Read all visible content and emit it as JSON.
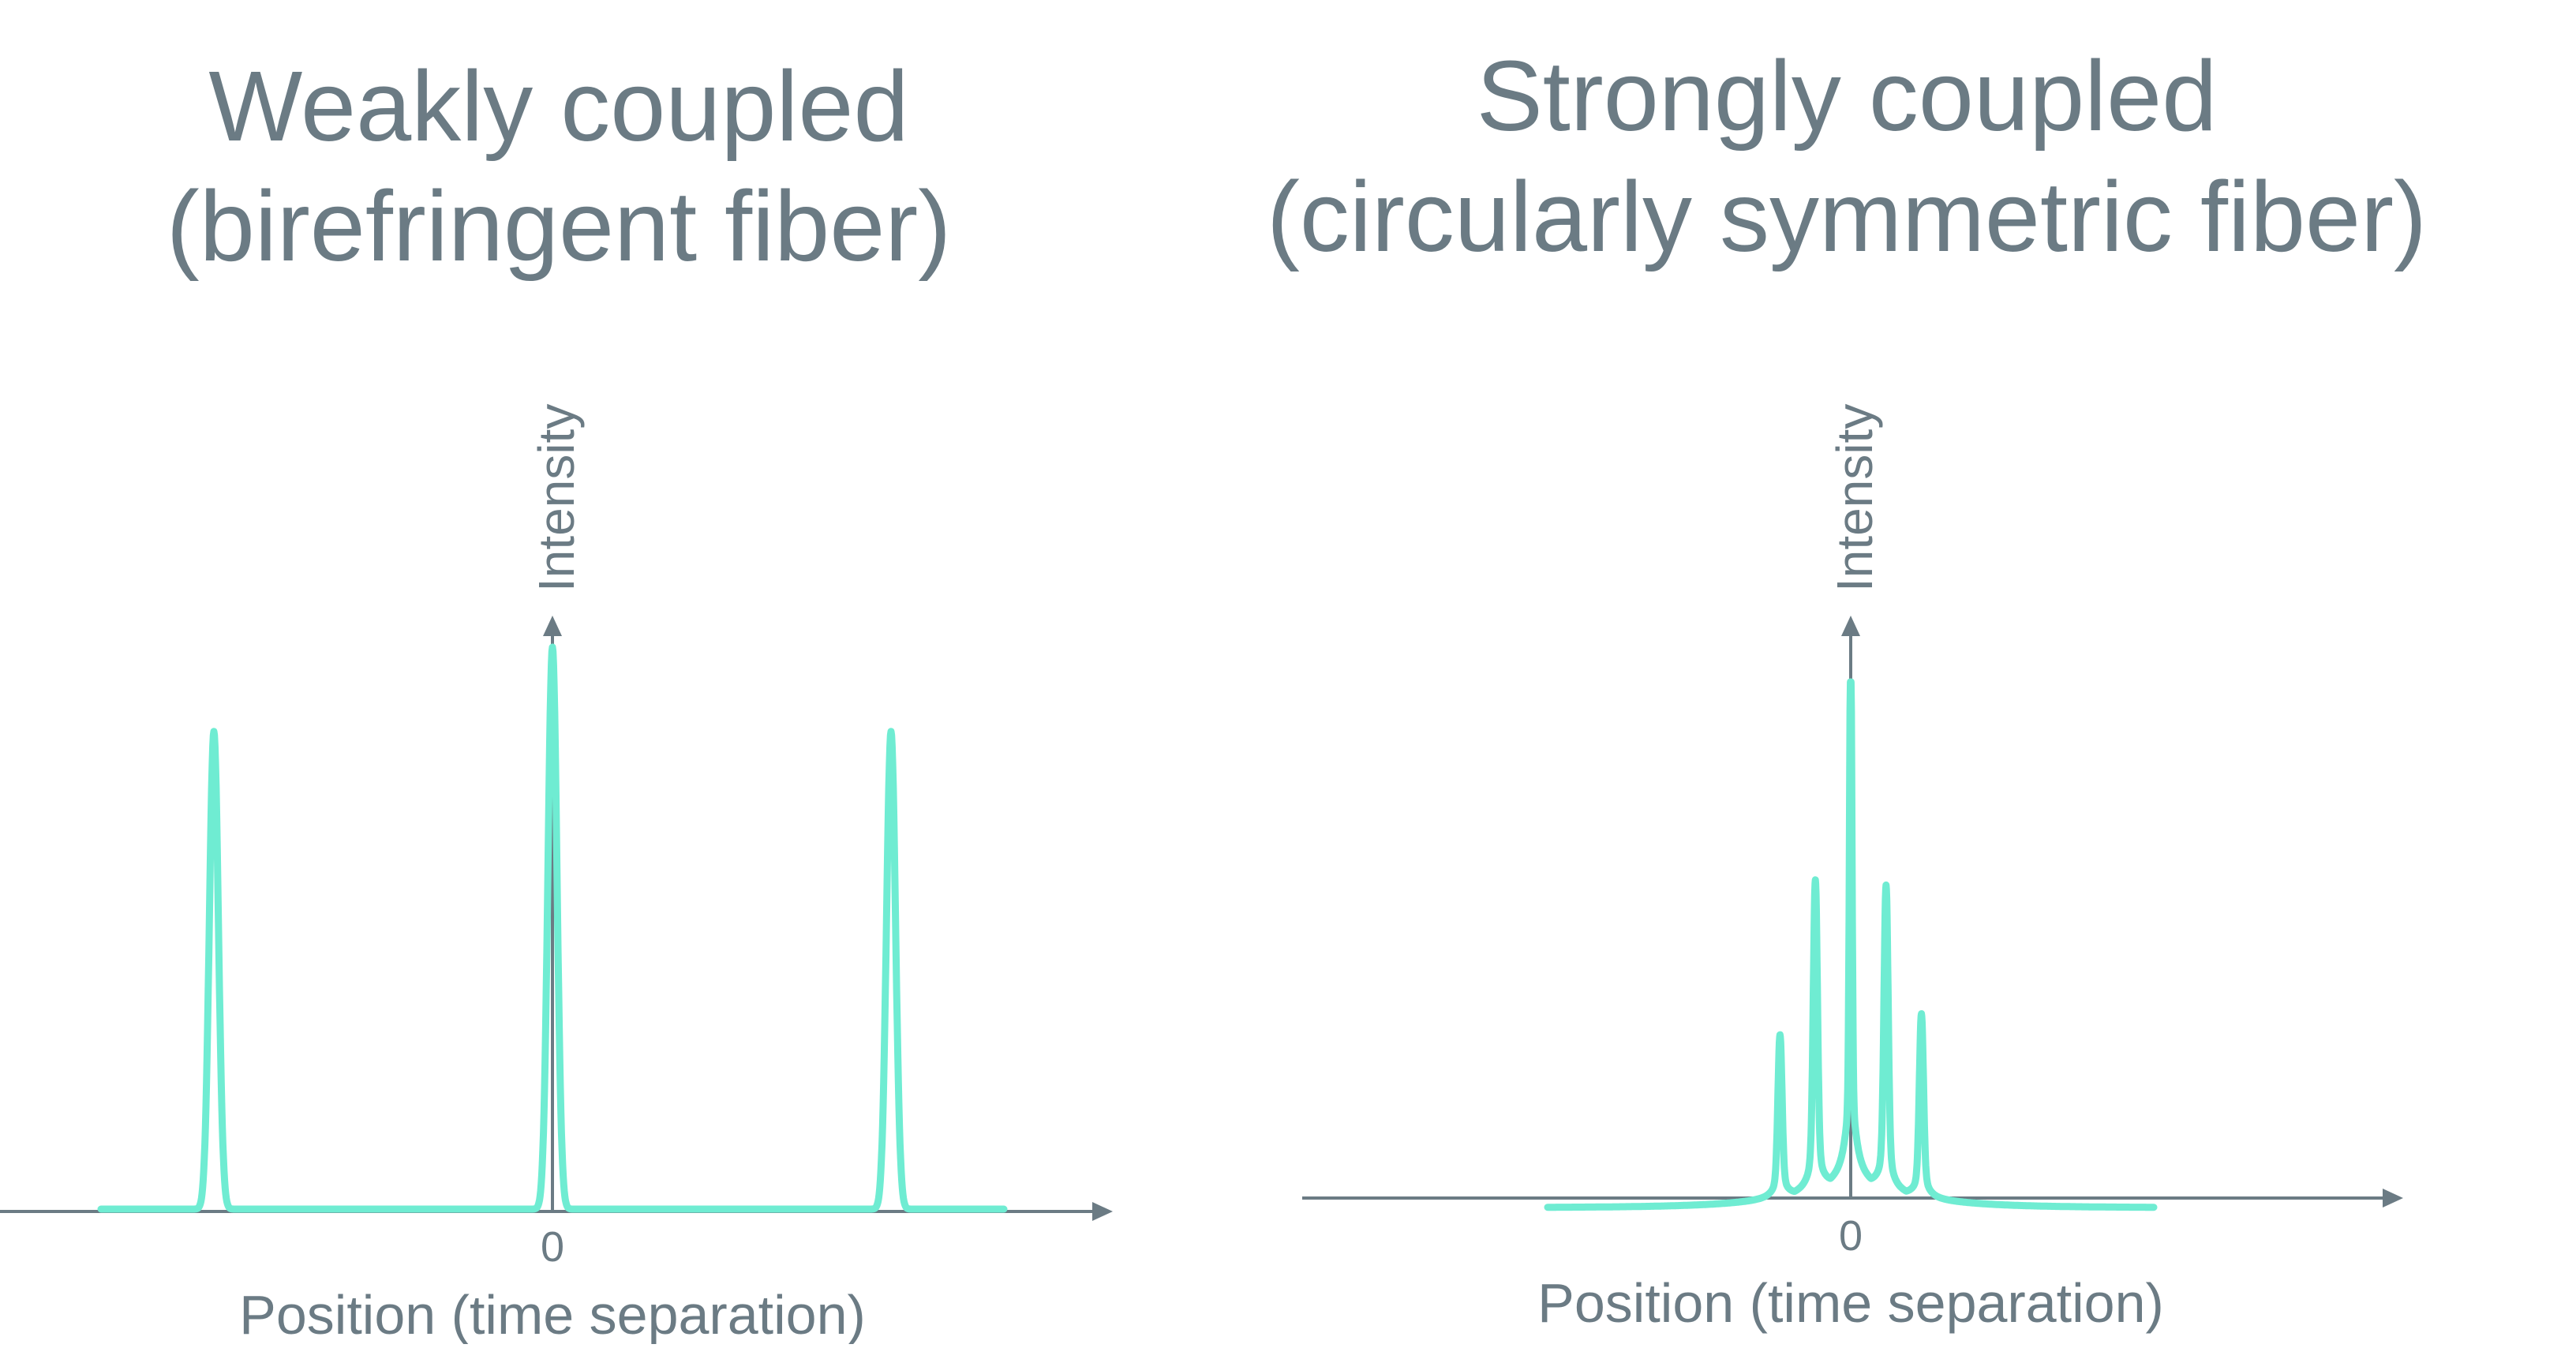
{
  "colors": {
    "text": "#6b7b84",
    "axis": "#6b7b84",
    "curve": "#6fecd2",
    "background": "#ffffff"
  },
  "chart_data": [
    {
      "type": "line",
      "title": "Weakly coupled",
      "subtitle": "(birefringent fiber)",
      "xlabel": "Position (time separation)",
      "ylabel": "Intensity",
      "x_tick_labels": [
        "0"
      ],
      "xlim": [
        -1.0,
        1.0
      ],
      "ylim": [
        0,
        1.0
      ],
      "grid": false,
      "series": [
        {
          "peaks": [
            {
              "x": -0.6,
              "height": 0.85
            },
            {
              "x": 0.0,
              "height": 1.0
            },
            {
              "x": 0.6,
              "height": 0.85
            }
          ]
        }
      ]
    },
    {
      "type": "line",
      "title": "Strongly coupled",
      "subtitle": "(circularly symmetric fiber)",
      "xlabel": "Position (time separation)",
      "ylabel": "Intensity",
      "x_tick_labels": [
        "0"
      ],
      "xlim": [
        -1.0,
        1.0
      ],
      "ylim": [
        0,
        1.0
      ],
      "grid": false,
      "series": [
        {
          "peaks": [
            {
              "x": -0.14,
              "height": 0.31
            },
            {
              "x": -0.07,
              "height": 0.59
            },
            {
              "x": 0.0,
              "height": 1.0
            },
            {
              "x": 0.07,
              "height": 0.58
            },
            {
              "x": 0.14,
              "height": 0.35
            }
          ],
          "x_start": -0.6,
          "x_end": 0.6
        }
      ]
    }
  ]
}
